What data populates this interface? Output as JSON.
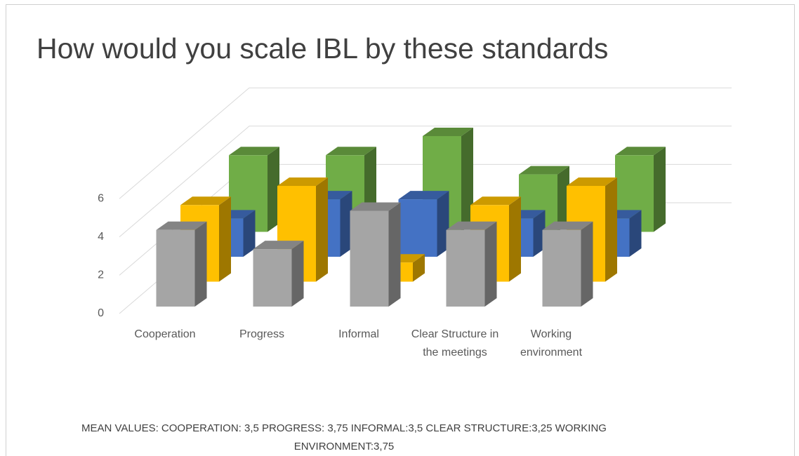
{
  "chart_data": {
    "type": "bar3d",
    "title": "How would you scale IBL by these standards",
    "categories": [
      "Cooperation",
      "Progress",
      "Informal",
      "Clear Structure in the meetings",
      "Working environment"
    ],
    "series": [
      {
        "color": "#a5a5a5",
        "values": [
          4,
          3,
          5,
          4,
          4
        ]
      },
      {
        "color": "#ffc000",
        "values": [
          4,
          5,
          1,
          4,
          5
        ]
      },
      {
        "color": "#4472c4",
        "values": [
          2,
          3,
          3,
          2,
          2
        ]
      },
      {
        "color": "#70ad47",
        "values": [
          4,
          4,
          5,
          3,
          4
        ]
      }
    ],
    "ylim": [
      0,
      6
    ],
    "yticks": [
      0,
      2,
      4,
      6
    ],
    "grid": true,
    "annotation": "MEAN VALUES: COOPERATION: 3,5  PROGRESS: 3,75 INFORMAL:3,5 CLEAR STRUCTURE:3,25 WORKING ENVIRONMENT:3,75"
  }
}
